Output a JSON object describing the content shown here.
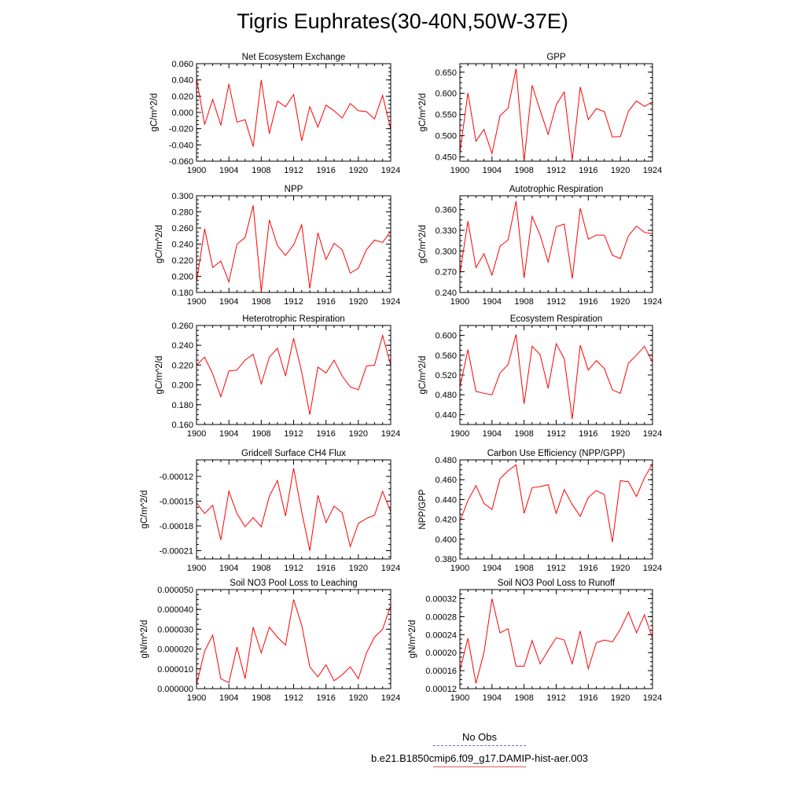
{
  "figure": {
    "title": "Tigris Euphrates(30-40N,50W-37E)"
  },
  "legend": {
    "entries": [
      {
        "label": "No Obs",
        "color": "#6b6bd8",
        "style": "dashed"
      },
      {
        "label": "b.e21.B1850cmip6.f09_g17.DAMIP-hist-aer.003",
        "color": "#e8555a",
        "style": "solid"
      }
    ]
  },
  "chart_data": [
    {
      "type": "line",
      "title": "Net Ecosystem Exchange",
      "ylabel": "gC/m^2/d",
      "xlim": [
        1900,
        1924
      ],
      "ylim": [
        -0.06,
        0.06
      ],
      "xticks": [
        "1900",
        "1904",
        "1908",
        "1912",
        "1916",
        "1920",
        "1924"
      ],
      "yticks": [
        "0.060",
        "0.040",
        "0.020",
        "0.000",
        "-0.020",
        "-0.040",
        "-0.060"
      ],
      "ytick_values": [
        0.06,
        0.04,
        0.02,
        0.0,
        -0.02,
        -0.04,
        -0.06
      ],
      "series": [
        {
          "color": "#ff0000",
          "x": [
            1900,
            1901,
            1902,
            1903,
            1904,
            1905,
            1906,
            1907,
            1908,
            1909,
            1910,
            1911,
            1912,
            1913,
            1914,
            1915,
            1916,
            1917,
            1918,
            1919,
            1920,
            1921,
            1922,
            1923,
            1924
          ],
          "values": [
            0.042,
            -0.015,
            0.016,
            -0.016,
            0.035,
            -0.012,
            -0.009,
            -0.042,
            0.04,
            -0.026,
            0.014,
            0.007,
            0.022,
            -0.035,
            0.007,
            -0.018,
            0.009,
            0.002,
            -0.007,
            0.011,
            0.002,
            0.001,
            -0.008,
            0.021,
            -0.021
          ]
        }
      ]
    },
    {
      "type": "line",
      "title": "GPP",
      "ylabel": "gC/m^2/d",
      "xlim": [
        1900,
        1924
      ],
      "ylim": [
        0.44,
        0.67
      ],
      "xticks": [
        "1900",
        "1904",
        "1908",
        "1912",
        "1916",
        "1920",
        "1924"
      ],
      "yticks": [
        "0.650",
        "0.600",
        "0.550",
        "0.500",
        "0.450"
      ],
      "ytick_values": [
        0.65,
        0.6,
        0.55,
        0.5,
        0.45
      ],
      "series": [
        {
          "color": "#ff0000",
          "x": [
            1900,
            1901,
            1902,
            1903,
            1904,
            1905,
            1906,
            1907,
            1908,
            1909,
            1910,
            1911,
            1912,
            1913,
            1914,
            1915,
            1916,
            1917,
            1918,
            1919,
            1920,
            1921,
            1922,
            1923,
            1924
          ],
          "values": [
            0.46,
            0.601,
            0.487,
            0.515,
            0.458,
            0.547,
            0.565,
            0.658,
            0.44,
            0.619,
            0.56,
            0.503,
            0.573,
            0.603,
            0.443,
            0.615,
            0.538,
            0.564,
            0.557,
            0.497,
            0.498,
            0.558,
            0.582,
            0.569,
            0.58
          ]
        }
      ]
    },
    {
      "type": "line",
      "title": "NPP",
      "ylabel": "gC/m^2/d",
      "xlim": [
        1900,
        1924
      ],
      "ylim": [
        0.18,
        0.3
      ],
      "xticks": [
        "1900",
        "1904",
        "1908",
        "1912",
        "1916",
        "1920",
        "1924"
      ],
      "yticks": [
        "0.300",
        "0.280",
        "0.260",
        "0.240",
        "0.220",
        "0.200",
        "0.180"
      ],
      "ytick_values": [
        0.3,
        0.28,
        0.26,
        0.24,
        0.22,
        0.2,
        0.18
      ],
      "series": [
        {
          "color": "#ff0000",
          "x": [
            1900,
            1901,
            1902,
            1903,
            1904,
            1905,
            1906,
            1907,
            1908,
            1909,
            1910,
            1911,
            1912,
            1913,
            1914,
            1915,
            1916,
            1917,
            1918,
            1919,
            1920,
            1921,
            1922,
            1923,
            1924
          ],
          "values": [
            0.193,
            0.259,
            0.211,
            0.219,
            0.193,
            0.24,
            0.248,
            0.288,
            0.181,
            0.27,
            0.238,
            0.226,
            0.239,
            0.264,
            0.185,
            0.254,
            0.221,
            0.241,
            0.233,
            0.204,
            0.21,
            0.233,
            0.245,
            0.242,
            0.256
          ]
        }
      ]
    },
    {
      "type": "line",
      "title": "Autotrophic Respiration",
      "ylabel": "gC/m^2/d",
      "xlim": [
        1900,
        1924
      ],
      "ylim": [
        0.24,
        0.38
      ],
      "xticks": [
        "1900",
        "1904",
        "1908",
        "1912",
        "1916",
        "1920",
        "1924"
      ],
      "yticks": [
        "0.360",
        "0.330",
        "0.300",
        "0.270",
        "0.240"
      ],
      "ytick_values": [
        0.36,
        0.33,
        0.3,
        0.27,
        0.24
      ],
      "series": [
        {
          "color": "#ff0000",
          "x": [
            1900,
            1901,
            1902,
            1903,
            1904,
            1905,
            1906,
            1907,
            1908,
            1909,
            1910,
            1911,
            1912,
            1913,
            1914,
            1915,
            1916,
            1917,
            1918,
            1919,
            1920,
            1921,
            1922,
            1923,
            1924
          ],
          "values": [
            0.267,
            0.343,
            0.276,
            0.296,
            0.265,
            0.307,
            0.316,
            0.372,
            0.261,
            0.35,
            0.323,
            0.284,
            0.335,
            0.339,
            0.26,
            0.362,
            0.317,
            0.323,
            0.323,
            0.294,
            0.289,
            0.322,
            0.336,
            0.327,
            0.325
          ]
        }
      ]
    },
    {
      "type": "line",
      "title": "Heterotrophic Respiration",
      "ylabel": "gC/m^2/d",
      "xlim": [
        1900,
        1924
      ],
      "ylim": [
        0.16,
        0.26
      ],
      "xticks": [
        "1900",
        "1904",
        "1908",
        "1912",
        "1916",
        "1920",
        "1924"
      ],
      "yticks": [
        "0.260",
        "0.240",
        "0.220",
        "0.200",
        "0.180",
        "0.160"
      ],
      "ytick_values": [
        0.26,
        0.24,
        0.22,
        0.2,
        0.18,
        0.16
      ],
      "series": [
        {
          "color": "#ff0000",
          "x": [
            1900,
            1901,
            1902,
            1903,
            1904,
            1905,
            1906,
            1907,
            1908,
            1909,
            1910,
            1911,
            1912,
            1913,
            1914,
            1915,
            1916,
            1917,
            1918,
            1919,
            1920,
            1921,
            1922,
            1923,
            1924
          ],
          "values": [
            0.22,
            0.228,
            0.211,
            0.188,
            0.214,
            0.215,
            0.225,
            0.231,
            0.201,
            0.228,
            0.237,
            0.209,
            0.247,
            0.213,
            0.17,
            0.218,
            0.212,
            0.225,
            0.209,
            0.198,
            0.195,
            0.219,
            0.22,
            0.25,
            0.22
          ]
        }
      ]
    },
    {
      "type": "line",
      "title": "Ecosystem Respiration",
      "ylabel": "gC/m^2/d",
      "xlim": [
        1900,
        1924
      ],
      "ylim": [
        0.42,
        0.62
      ],
      "xticks": [
        "1900",
        "1904",
        "1908",
        "1912",
        "1916",
        "1920",
        "1924"
      ],
      "yticks": [
        "0.600",
        "0.560",
        "0.520",
        "0.480",
        "0.440"
      ],
      "ytick_values": [
        0.6,
        0.56,
        0.52,
        0.48,
        0.44
      ],
      "series": [
        {
          "color": "#ff0000",
          "x": [
            1900,
            1901,
            1902,
            1903,
            1904,
            1905,
            1906,
            1907,
            1908,
            1909,
            1910,
            1911,
            1912,
            1913,
            1914,
            1915,
            1916,
            1917,
            1918,
            1919,
            1920,
            1921,
            1922,
            1923,
            1924
          ],
          "values": [
            0.495,
            0.571,
            0.487,
            0.483,
            0.48,
            0.524,
            0.541,
            0.602,
            0.462,
            0.578,
            0.561,
            0.493,
            0.583,
            0.553,
            0.431,
            0.58,
            0.53,
            0.549,
            0.533,
            0.49,
            0.483,
            0.544,
            0.56,
            0.578,
            0.546
          ]
        }
      ]
    },
    {
      "type": "line",
      "title": "Gridcell Surface CH4 Flux",
      "ylabel": "gC/m^2/d",
      "xlim": [
        1900,
        1924
      ],
      "ylim": [
        -0.00022,
        -0.0001
      ],
      "xticks": [
        "1900",
        "1904",
        "1908",
        "1912",
        "1916",
        "1920",
        "1924"
      ],
      "yticks": [
        "-0.00012",
        "-0.00015",
        "-0.00018",
        "-0.00021"
      ],
      "ytick_values": [
        -0.00012,
        -0.00015,
        -0.00018,
        -0.00021
      ],
      "series": [
        {
          "color": "#ff0000",
          "x": [
            1900,
            1901,
            1902,
            1903,
            1904,
            1905,
            1906,
            1907,
            1908,
            1909,
            1910,
            1911,
            1912,
            1913,
            1914,
            1915,
            1916,
            1917,
            1918,
            1919,
            1920,
            1921,
            1922,
            1923,
            1924
          ],
          "values": [
            -0.000152,
            -0.000165,
            -0.000155,
            -0.000197,
            -0.000138,
            -0.000165,
            -0.000181,
            -0.00017,
            -0.000181,
            -0.000144,
            -0.000125,
            -0.000168,
            -0.00011,
            -0.000163,
            -0.00021,
            -0.000143,
            -0.000176,
            -0.000156,
            -0.000164,
            -0.000205,
            -0.000177,
            -0.000171,
            -0.000167,
            -0.000138,
            -0.000163
          ]
        }
      ]
    },
    {
      "type": "line",
      "title": "Carbon Use Efficiency (NPP/GPP)",
      "ylabel": "NPP/GPP",
      "xlim": [
        1900,
        1924
      ],
      "ylim": [
        0.38,
        0.48
      ],
      "xticks": [
        "1900",
        "1904",
        "1908",
        "1912",
        "1916",
        "1920",
        "1924"
      ],
      "yticks": [
        "0.480",
        "0.460",
        "0.440",
        "0.420",
        "0.400",
        "0.380"
      ],
      "ytick_values": [
        0.48,
        0.46,
        0.44,
        0.42,
        0.4,
        0.38
      ],
      "series": [
        {
          "color": "#ff0000",
          "x": [
            1900,
            1901,
            1902,
            1903,
            1904,
            1905,
            1906,
            1907,
            1908,
            1909,
            1910,
            1911,
            1912,
            1913,
            1914,
            1915,
            1916,
            1917,
            1918,
            1919,
            1920,
            1921,
            1922,
            1923,
            1924
          ],
          "values": [
            0.418,
            0.439,
            0.454,
            0.436,
            0.43,
            0.461,
            0.469,
            0.475,
            0.426,
            0.452,
            0.453,
            0.455,
            0.426,
            0.45,
            0.435,
            0.423,
            0.442,
            0.449,
            0.445,
            0.397,
            0.459,
            0.458,
            0.443,
            0.462,
            0.476
          ]
        }
      ]
    },
    {
      "type": "line",
      "title": "Soil NO3 Pool Loss to Leaching",
      "ylabel": "gN/m^2/d",
      "xlim": [
        1900,
        1924
      ],
      "ylim": [
        0.0,
        5e-05
      ],
      "xticks": [
        "1900",
        "1904",
        "1908",
        "1912",
        "1916",
        "1920",
        "1924"
      ],
      "yticks": [
        "0.000050",
        "0.000040",
        "0.000030",
        "0.000020",
        "0.000010",
        "0.000000"
      ],
      "ytick_values": [
        5e-05,
        4e-05,
        3e-05,
        2e-05,
        1e-05,
        0.0
      ],
      "series": [
        {
          "color": "#ff0000",
          "x": [
            1900,
            1901,
            1902,
            1903,
            1904,
            1905,
            1906,
            1907,
            1908,
            1909,
            1910,
            1911,
            1912,
            1913,
            1914,
            1915,
            1916,
            1917,
            1918,
            1919,
            1920,
            1921,
            1922,
            1923,
            1924
          ],
          "values": [
            2e-06,
            1.9e-05,
            2.7e-05,
            5e-06,
            3e-06,
            2.1e-05,
            5e-06,
            3.1e-05,
            1.8e-05,
            3.1e-05,
            2.6e-05,
            2.2e-05,
            4.5e-05,
            3.2e-05,
            1.1e-05,
            6e-06,
            1.2e-05,
            4e-06,
            7e-06,
            1.1e-05,
            5e-06,
            1.8e-05,
            2.6e-05,
            3e-05,
            4.2e-05
          ]
        }
      ]
    },
    {
      "type": "line",
      "title": "Soil NO3 Pool Loss to Runoff",
      "ylabel": "gN/m^2/d",
      "xlim": [
        1900,
        1924
      ],
      "ylim": [
        0.00012,
        0.00034
      ],
      "xticks": [
        "1900",
        "1904",
        "1908",
        "1912",
        "1916",
        "1920",
        "1924"
      ],
      "yticks": [
        "0.00032",
        "0.00028",
        "0.00024",
        "0.00020",
        "0.00016",
        "0.00012"
      ],
      "ytick_values": [
        0.00032,
        0.00028,
        0.00024,
        0.0002,
        0.00016,
        0.00012
      ],
      "series": [
        {
          "color": "#ff0000",
          "x": [
            1900,
            1901,
            1902,
            1903,
            1904,
            1905,
            1906,
            1907,
            1908,
            1909,
            1910,
            1911,
            1912,
            1913,
            1914,
            1915,
            1916,
            1917,
            1918,
            1919,
            1920,
            1921,
            1922,
            1923,
            1924
          ],
          "values": [
            0.00016,
            0.000232,
            0.000132,
            0.0002,
            0.00032,
            0.000244,
            0.000253,
            0.00017,
            0.00017,
            0.000227,
            0.000175,
            0.000205,
            0.000233,
            0.000228,
            0.000175,
            0.000248,
            0.000164,
            0.000222,
            0.000228,
            0.000224,
            0.000252,
            0.00029,
            0.000244,
            0.000284,
            0.000232
          ]
        }
      ]
    }
  ]
}
